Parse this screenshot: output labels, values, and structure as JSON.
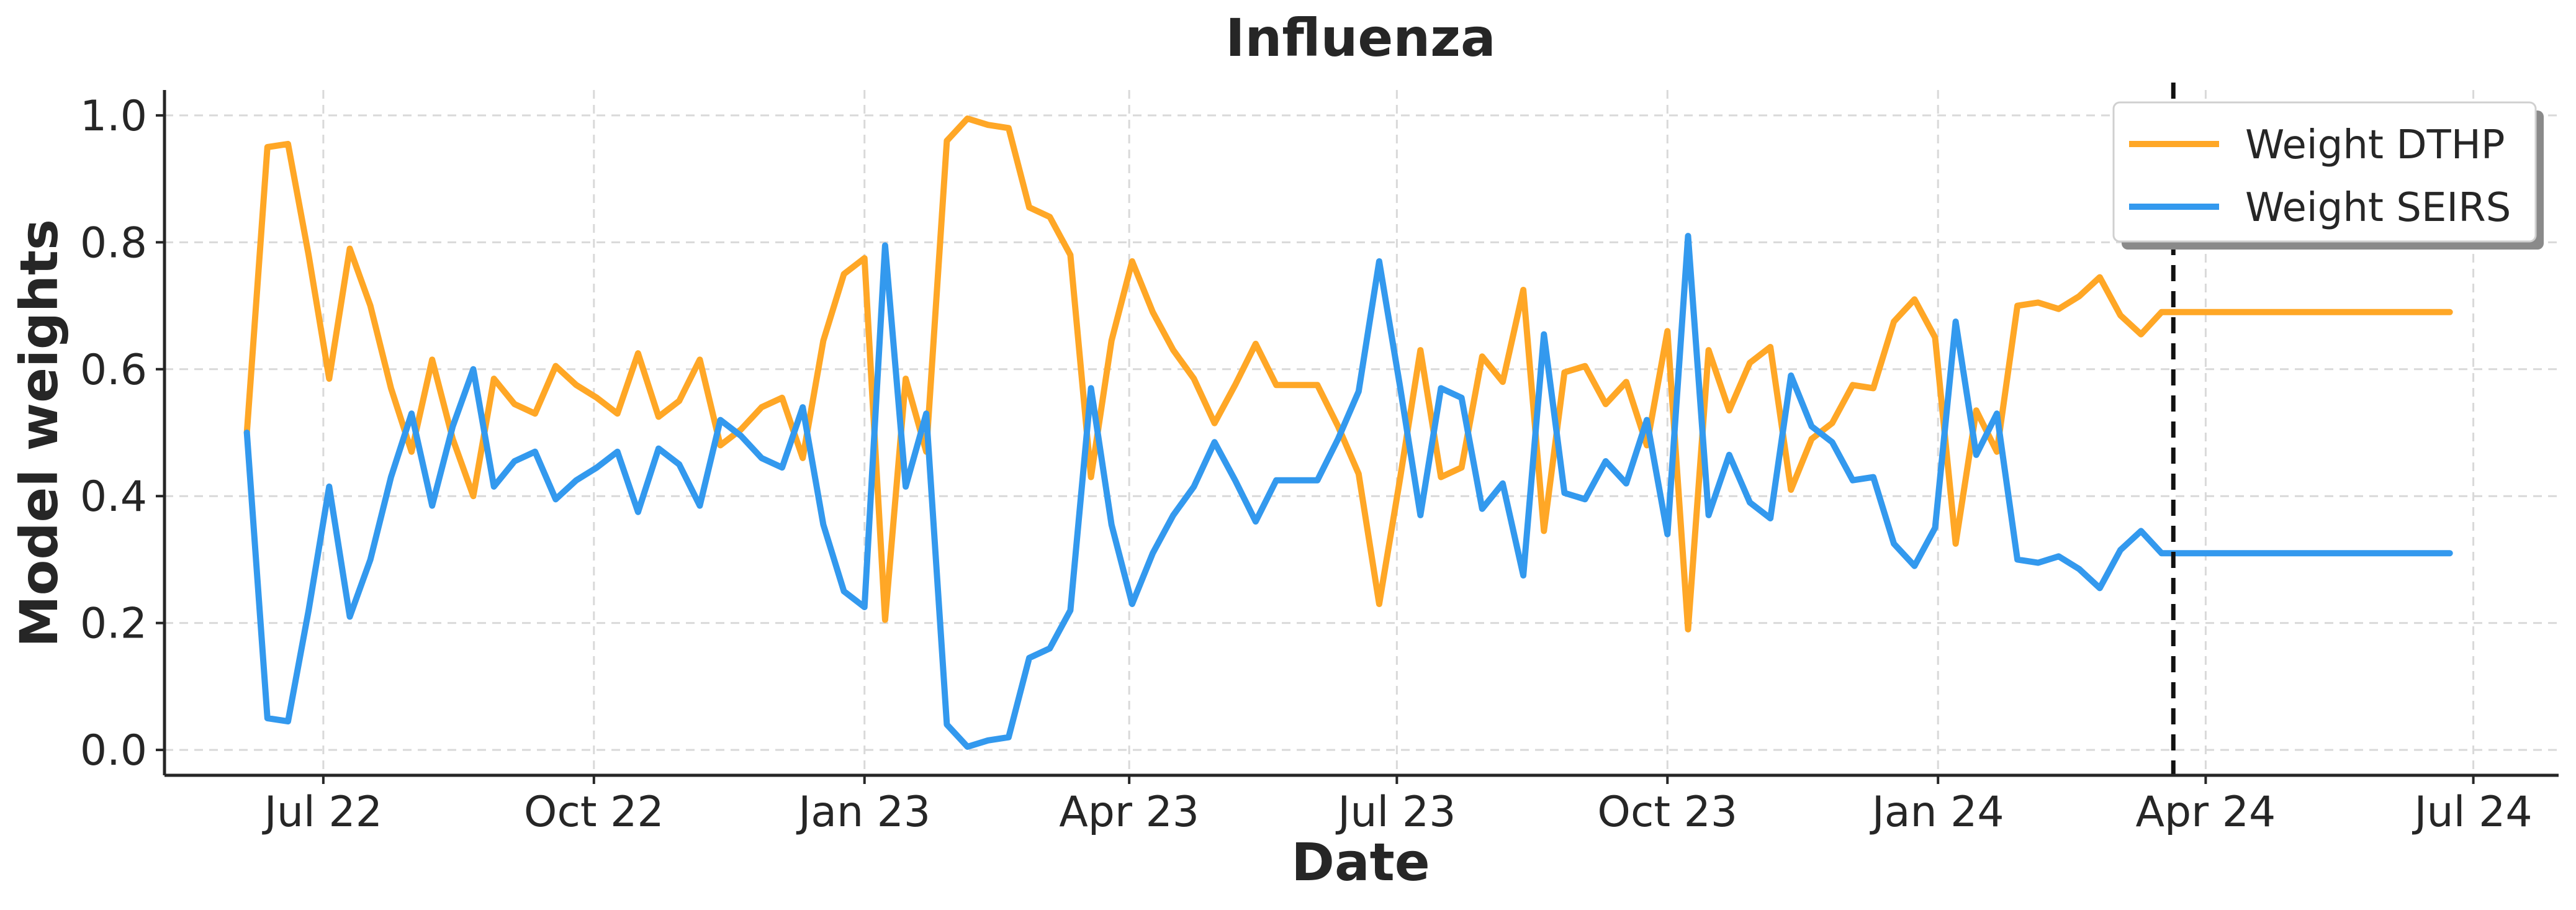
{
  "chart_data": {
    "type": "line",
    "title": "Influenza",
    "xlabel": "Date",
    "ylabel": "Model weights",
    "ylim": [
      -0.04,
      1.04
    ],
    "xlim": [
      "2022-05-08",
      "2024-07-30"
    ],
    "yticks": [
      0.0,
      0.2,
      0.4,
      0.6,
      0.8,
      1.0
    ],
    "ytick_labels": [
      "0.0",
      "0.2",
      "0.4",
      "0.6",
      "0.8",
      "1.0"
    ],
    "xticks": [
      "2022-07-01",
      "2022-10-01",
      "2023-01-01",
      "2023-04-01",
      "2023-07-01",
      "2023-10-01",
      "2024-01-01",
      "2024-04-01",
      "2024-07-01"
    ],
    "xtick_labels": [
      "Jul 22",
      "Oct 22",
      "Jan 23",
      "Apr 23",
      "Jul 23",
      "Oct 23",
      "Jan 24",
      "Apr 24",
      "Jul 24"
    ],
    "grid": true,
    "legend_position": "top-right",
    "vertical_line": "2024-03-21",
    "x": [
      "2022-06-05",
      "2022-06-12",
      "2022-06-19",
      "2022-06-26",
      "2022-07-03",
      "2022-07-10",
      "2022-07-17",
      "2022-07-24",
      "2022-07-31",
      "2022-08-07",
      "2022-08-14",
      "2022-08-21",
      "2022-08-28",
      "2022-09-04",
      "2022-09-11",
      "2022-09-18",
      "2022-09-25",
      "2022-10-02",
      "2022-10-09",
      "2022-10-16",
      "2022-10-23",
      "2022-10-30",
      "2022-11-06",
      "2022-11-13",
      "2022-11-20",
      "2022-11-27",
      "2022-12-04",
      "2022-12-11",
      "2022-12-18",
      "2022-12-25",
      "2023-01-01",
      "2023-01-08",
      "2023-01-15",
      "2023-01-22",
      "2023-01-29",
      "2023-02-05",
      "2023-02-12",
      "2023-02-19",
      "2023-02-26",
      "2023-03-05",
      "2023-03-12",
      "2023-03-19",
      "2023-03-26",
      "2023-04-02",
      "2023-04-09",
      "2023-04-16",
      "2023-04-23",
      "2023-04-30",
      "2023-05-07",
      "2023-05-14",
      "2023-05-21",
      "2023-05-28",
      "2023-06-04",
      "2023-06-11",
      "2023-06-18",
      "2023-06-25",
      "2023-07-02",
      "2023-07-09",
      "2023-07-16",
      "2023-07-23",
      "2023-07-30",
      "2023-08-06",
      "2023-08-13",
      "2023-08-20",
      "2023-08-27",
      "2023-09-03",
      "2023-09-10",
      "2023-09-17",
      "2023-09-24",
      "2023-10-01",
      "2023-10-08",
      "2023-10-15",
      "2023-10-22",
      "2023-10-29",
      "2023-11-05",
      "2023-11-12",
      "2023-11-19",
      "2023-11-26",
      "2023-12-03",
      "2023-12-10",
      "2023-12-17",
      "2023-12-24",
      "2023-12-31",
      "2024-01-07",
      "2024-01-14",
      "2024-01-21",
      "2024-01-28",
      "2024-02-04",
      "2024-02-11",
      "2024-02-18",
      "2024-02-25",
      "2024-03-03",
      "2024-03-10",
      "2024-03-17",
      "2024-03-24",
      "2024-06-23"
    ],
    "series": [
      {
        "name": "Weight DTHP",
        "color": "#FFA726",
        "values": [
          0.5,
          0.95,
          0.955,
          0.78,
          0.585,
          0.79,
          0.7,
          0.57,
          0.47,
          0.615,
          0.49,
          0.4,
          0.585,
          0.545,
          0.53,
          0.605,
          0.575,
          0.555,
          0.53,
          0.625,
          0.525,
          0.55,
          0.615,
          0.48,
          0.505,
          0.54,
          0.555,
          0.46,
          0.645,
          0.75,
          0.775,
          0.205,
          0.585,
          0.47,
          0.96,
          0.995,
          0.985,
          0.98,
          0.855,
          0.84,
          0.78,
          0.43,
          0.645,
          0.77,
          0.69,
          0.63,
          0.585,
          0.515,
          0.575,
          0.64,
          0.575,
          0.575,
          0.575,
          0.51,
          0.435,
          0.23,
          0.425,
          0.63,
          0.43,
          0.445,
          0.62,
          0.58,
          0.725,
          0.345,
          0.595,
          0.605,
          0.545,
          0.58,
          0.48,
          0.66,
          0.19,
          0.63,
          0.535,
          0.61,
          0.635,
          0.41,
          0.49,
          0.515,
          0.575,
          0.57,
          0.675,
          0.71,
          0.65,
          0.325,
          0.535,
          0.47,
          0.7,
          0.705,
          0.695,
          0.715,
          0.745,
          0.685,
          0.655,
          0.69,
          0.69,
          0.69
        ]
      },
      {
        "name": "Weight SEIRS",
        "color": "#3399EE",
        "values": [
          0.5,
          0.05,
          0.045,
          0.22,
          0.415,
          0.21,
          0.3,
          0.43,
          0.53,
          0.385,
          0.51,
          0.6,
          0.415,
          0.455,
          0.47,
          0.395,
          0.425,
          0.445,
          0.47,
          0.375,
          0.475,
          0.45,
          0.385,
          0.52,
          0.495,
          0.46,
          0.445,
          0.54,
          0.355,
          0.25,
          0.225,
          0.795,
          0.415,
          0.53,
          0.04,
          0.005,
          0.015,
          0.02,
          0.145,
          0.16,
          0.22,
          0.57,
          0.355,
          0.23,
          0.31,
          0.37,
          0.415,
          0.485,
          0.425,
          0.36,
          0.425,
          0.425,
          0.425,
          0.49,
          0.565,
          0.77,
          0.575,
          0.37,
          0.57,
          0.555,
          0.38,
          0.42,
          0.275,
          0.655,
          0.405,
          0.395,
          0.455,
          0.42,
          0.52,
          0.34,
          0.81,
          0.37,
          0.465,
          0.39,
          0.365,
          0.59,
          0.51,
          0.485,
          0.425,
          0.43,
          0.325,
          0.29,
          0.35,
          0.675,
          0.465,
          0.53,
          0.3,
          0.295,
          0.305,
          0.285,
          0.255,
          0.315,
          0.345,
          0.31,
          0.31,
          0.31
        ]
      }
    ]
  }
}
